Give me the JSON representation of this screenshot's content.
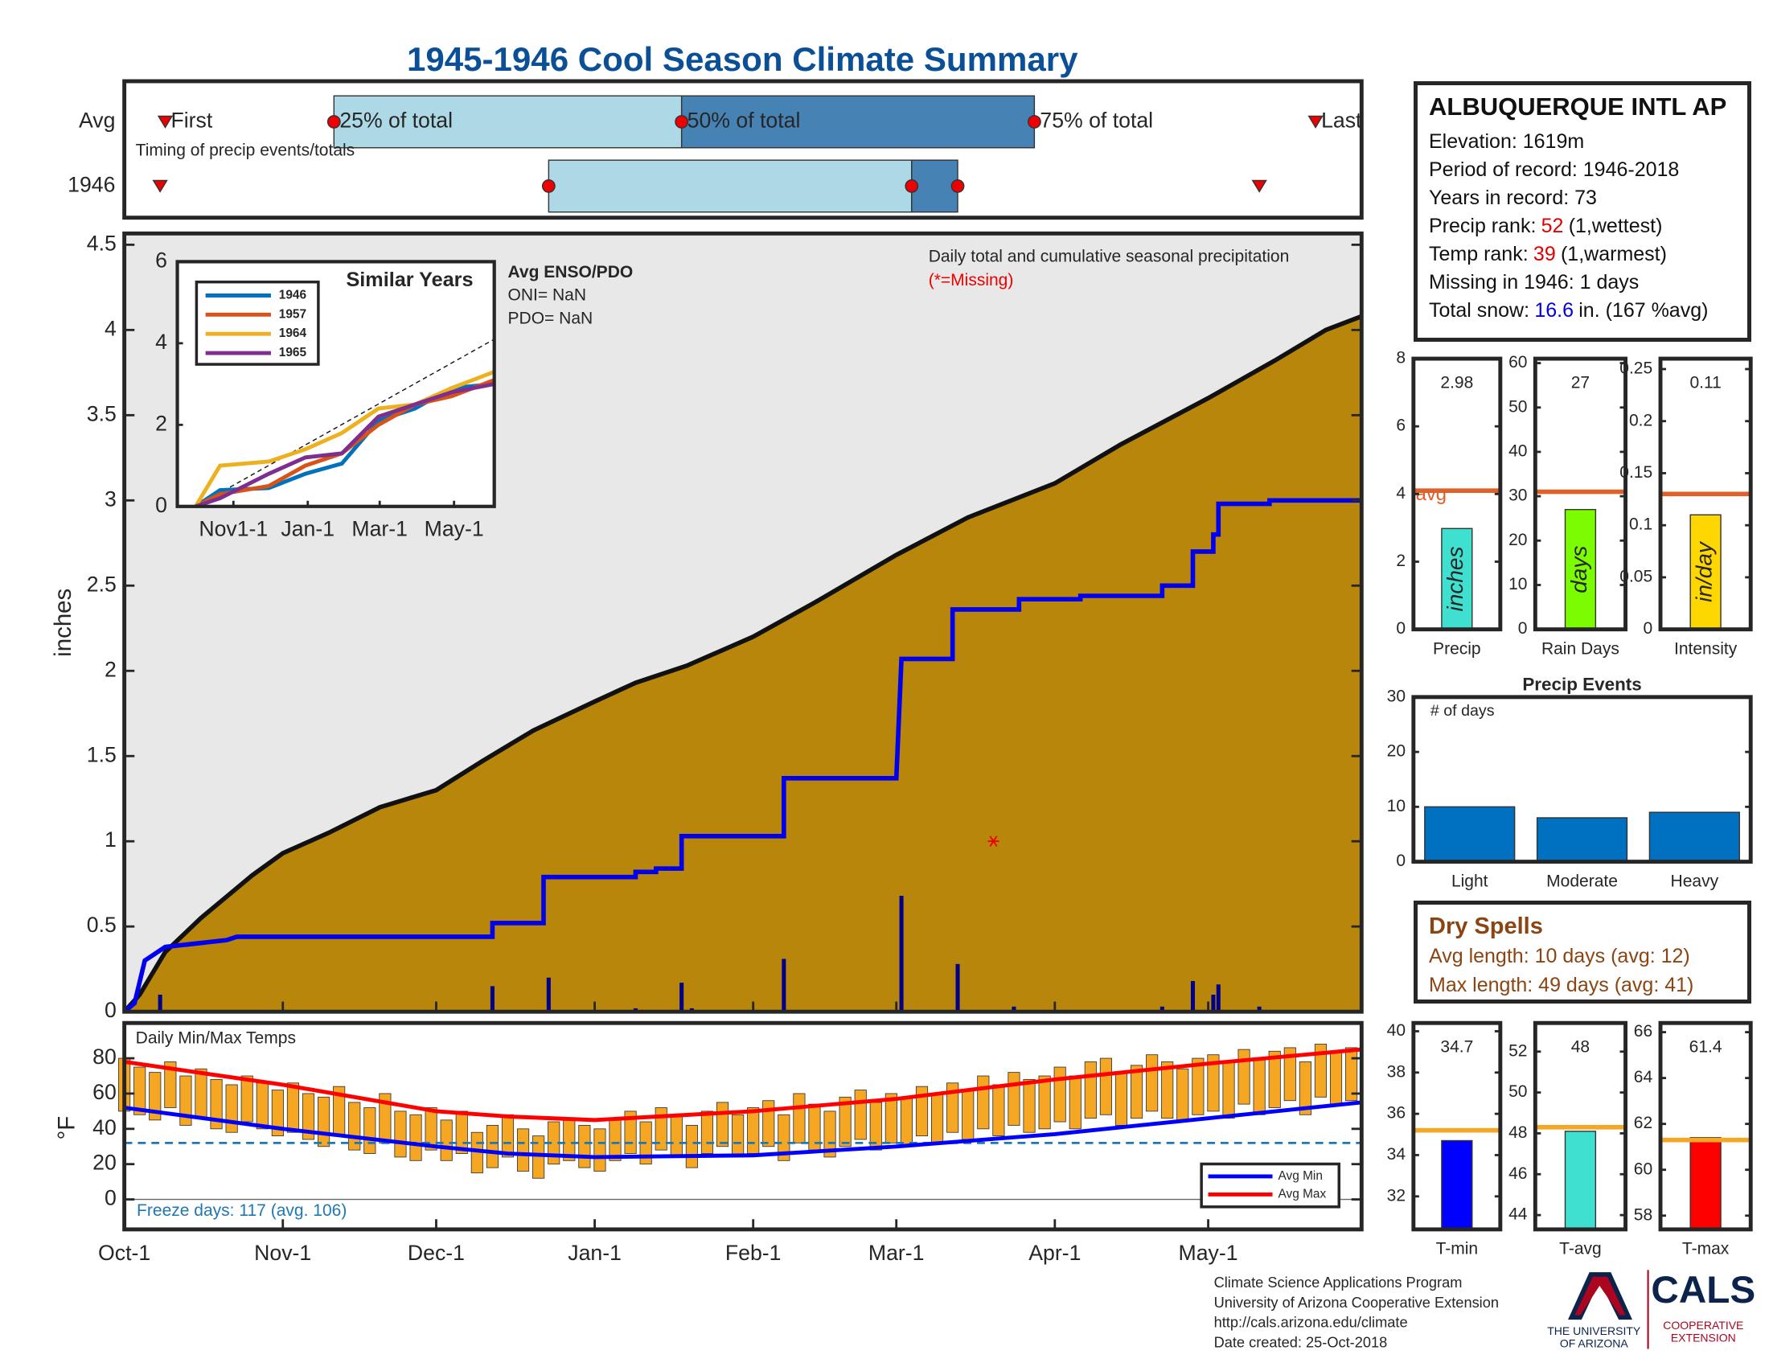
{
  "title": "1945-1946 Cool Season Climate Summary",
  "station": {
    "name": "ALBUQUERQUE INTL AP",
    "rows": [
      [
        "Elevation: 1619m"
      ],
      [
        "Period of record: 1946-2018"
      ],
      [
        "Years in record: 73"
      ],
      [
        "Precip rank:",
        "52",
        "(1,wettest)"
      ],
      [
        "Temp rank:",
        "39",
        "(1,warmest)"
      ],
      [
        "Missing in 1946: 1 days"
      ],
      [
        "Total snow:",
        "16.6",
        "in. (167 %avg)"
      ]
    ]
  },
  "dry_spells": {
    "title": "Dry Spells",
    "lines": [
      "Avg length: 10 days (avg: 12)",
      "Max length: 49 days (avg: 41)"
    ]
  },
  "footer": {
    "lines": [
      "Climate Science Applications Program",
      "University of Arizona Cooperative Extension",
      "http://cals.arizona.edu/climate",
      "Date created: 25-Oct-2018"
    ],
    "university": [
      "THE UNIVERSITY",
      "OF ARIZONA"
    ],
    "cals": "CALS",
    "extension": [
      "COOPERATIVE",
      "EXTENSION"
    ]
  },
  "chart_data": [
    {
      "type": "timeline",
      "note": "Timing of precip events/totals",
      "labels": [
        "First",
        "25% of total",
        "50% of total",
        "75% of total",
        "Last"
      ],
      "xlim": [
        0,
        242
      ],
      "colors": [
        "#add8e6",
        "#4682b4"
      ],
      "series": [
        {
          "name": "Avg",
          "values": [
            8,
            41,
            109,
            178,
            233
          ]
        },
        {
          "name": "1946",
          "values": [
            7,
            83,
            154,
            163,
            222
          ]
        }
      ]
    },
    {
      "type": "area",
      "ylabel": "inches",
      "annotation": "Daily total and cumulative seasonal precipitation",
      "missing_note": "(*=Missing)",
      "xlim": [
        0,
        242
      ],
      "ylim": [
        0,
        4.5
      ],
      "yticks": [
        0,
        0.5,
        1,
        1.5,
        2,
        2.5,
        3,
        3.5,
        4,
        4.5
      ],
      "background": "#e8e8e8",
      "average": {
        "color": "#b8860b",
        "x": [
          0,
          3,
          8,
          15,
          25,
          31,
          40,
          50,
          61,
          70,
          80,
          92,
          100,
          110,
          123,
          135,
          151,
          165,
          182,
          195,
          212,
          225,
          235,
          242
        ],
        "values": [
          0,
          0.1,
          0.35,
          0.55,
          0.8,
          0.93,
          1.05,
          1.2,
          1.3,
          1.47,
          1.65,
          1.82,
          1.93,
          2.03,
          2.2,
          2.4,
          2.68,
          2.9,
          3.1,
          3.33,
          3.6,
          3.82,
          4.0,
          4.08
        ]
      },
      "cumulative": {
        "color": "#0000ee",
        "x": [
          0,
          2,
          4,
          8,
          20,
          22,
          72,
          72,
          82,
          82,
          100,
          100,
          104,
          104,
          109,
          109,
          129,
          129,
          151,
          152,
          162,
          162,
          175,
          175,
          187,
          187,
          203,
          203,
          209,
          209,
          213,
          213,
          214,
          214,
          224,
          224,
          242
        ],
        "values": [
          0,
          0.05,
          0.3,
          0.38,
          0.42,
          0.44,
          0.44,
          0.52,
          0.52,
          0.79,
          0.79,
          0.82,
          0.82,
          0.84,
          0.84,
          1.03,
          1.03,
          1.37,
          1.37,
          2.07,
          2.07,
          2.36,
          2.36,
          2.42,
          2.42,
          2.44,
          2.44,
          2.5,
          2.5,
          2.7,
          2.7,
          2.8,
          2.8,
          2.98,
          2.98,
          3.0,
          3.0
        ]
      },
      "daily": {
        "color": "#00008b",
        "x": [
          7,
          72,
          83,
          100,
          109,
          111,
          129,
          152,
          163,
          174,
          203,
          209,
          213,
          214,
          222
        ],
        "values": [
          0.1,
          0.15,
          0.2,
          0.02,
          0.17,
          0.02,
          0.31,
          0.68,
          0.28,
          0.03,
          0.03,
          0.18,
          0.1,
          0.16,
          0.03
        ]
      },
      "missing": {
        "x": [
          170
        ],
        "values": [
          1
        ]
      }
    },
    {
      "type": "line",
      "title": "Similar Years",
      "notes": [
        "Avg ENSO/PDO",
        "ONI= NaN",
        "PDO= NaN"
      ],
      "xlim": [
        -15,
        245
      ],
      "ylim": [
        0,
        6
      ],
      "yticks": [
        0,
        2,
        4,
        6
      ],
      "xticks": [
        {
          "value": 31,
          "label": "Nov1-1"
        },
        {
          "value": 92,
          "label": "Jan-1"
        },
        {
          "value": 151,
          "label": "Mar-1"
        },
        {
          "value": 212,
          "label": "May-1"
        }
      ],
      "x": [
        0,
        20,
        60,
        90,
        120,
        150,
        180,
        210,
        245
      ],
      "series": [
        {
          "name": "1946",
          "color": "#0072bd",
          "values": [
            0,
            0.4,
            0.45,
            0.8,
            1.05,
            2.1,
            2.4,
            2.9,
            3.0
          ]
        },
        {
          "name": "1957",
          "color": "#d95319",
          "values": [
            0,
            0.3,
            0.5,
            1.0,
            1.3,
            2.0,
            2.5,
            2.7,
            3.1
          ]
        },
        {
          "name": "1964",
          "color": "#edb120",
          "values": [
            0,
            1.0,
            1.1,
            1.4,
            1.8,
            2.4,
            2.5,
            2.9,
            3.3
          ]
        },
        {
          "name": "1965",
          "color": "#7e2f8e",
          "values": [
            0,
            0.2,
            0.8,
            1.2,
            1.3,
            2.2,
            2.5,
            2.8,
            3.0
          ]
        }
      ],
      "reference": {
        "x": [
          0,
          245
        ],
        "values": [
          0,
          4.1
        ]
      }
    },
    {
      "type": "meter",
      "category": "Precip",
      "value": 2.98,
      "unit": "inches",
      "avg": 4.1,
      "avg_label": "avg",
      "avg_color": "#e0602a",
      "ylim": [
        0,
        8
      ],
      "yticks": [
        0,
        2,
        4,
        6,
        8
      ],
      "color": "#40e0d0"
    },
    {
      "type": "meter",
      "category": "Rain Days",
      "value": 27,
      "unit": "days",
      "avg": 31,
      "avg_color": "#e0602a",
      "ylim": [
        0,
        61
      ],
      "yticks": [
        0,
        10,
        20,
        30,
        40,
        50,
        60
      ],
      "color": "#7cfc00"
    },
    {
      "type": "meter",
      "category": "Intensity",
      "value": 0.11,
      "unit": "in/day",
      "avg": 0.13,
      "avg_color": "#e0602a",
      "ylim": [
        0,
        0.26
      ],
      "yticks": [
        0,
        0.05,
        0.1,
        0.15,
        0.2,
        0.25
      ],
      "color": "#ffd700"
    },
    {
      "type": "bar",
      "title": "Precip Events",
      "annotation": "# of days",
      "categories": [
        "Light",
        "Moderate",
        "Heavy"
      ],
      "values": [
        10,
        8,
        9
      ],
      "ylim": [
        0,
        30
      ],
      "yticks": [
        0,
        10,
        20,
        30
      ],
      "color": "#0070c0"
    },
    {
      "type": "range-bar",
      "title": "Daily Min/Max Temps",
      "ylabel": "°F",
      "note": "Freeze days: 117 (avg. 106)",
      "freeze": 32,
      "color": "#f5a623",
      "xlim": [
        0,
        242
      ],
      "ylim": [
        -17,
        100
      ],
      "yticks": [
        0,
        20,
        40,
        60,
        80
      ],
      "xticks": [
        {
          "value": 0,
          "label": "Oct-1"
        },
        {
          "value": 31,
          "label": "Nov-1"
        },
        {
          "value": 61,
          "label": "Dec-1"
        },
        {
          "value": 92,
          "label": "Jan-1"
        },
        {
          "value": 123,
          "label": "Feb-1"
        },
        {
          "value": 151,
          "label": "Mar-1"
        },
        {
          "value": 182,
          "label": "Apr-1"
        },
        {
          "value": 212,
          "label": "May-1"
        }
      ],
      "x": [
        0,
        3,
        6,
        9,
        12,
        15,
        18,
        21,
        24,
        27,
        30,
        33,
        36,
        39,
        42,
        45,
        48,
        51,
        54,
        57,
        60,
        63,
        66,
        69,
        72,
        75,
        78,
        81,
        84,
        87,
        90,
        93,
        96,
        99,
        102,
        105,
        108,
        111,
        114,
        117,
        120,
        123,
        126,
        129,
        132,
        135,
        138,
        141,
        144,
        147,
        150,
        153,
        156,
        159,
        162,
        165,
        168,
        171,
        174,
        177,
        180,
        183,
        186,
        189,
        192,
        195,
        198,
        201,
        204,
        207,
        210,
        213,
        216,
        219,
        222,
        225,
        228,
        231,
        234,
        237,
        240
      ],
      "max": [
        80,
        75,
        72,
        78,
        70,
        74,
        68,
        65,
        70,
        66,
        62,
        66,
        60,
        58,
        64,
        55,
        52,
        60,
        50,
        48,
        52,
        45,
        50,
        38,
        42,
        48,
        40,
        36,
        44,
        46,
        42,
        40,
        46,
        50,
        44,
        52,
        48,
        42,
        50,
        55,
        48,
        52,
        56,
        48,
        60,
        54,
        50,
        58,
        62,
        55,
        60,
        58,
        64,
        60,
        66,
        62,
        70,
        65,
        72,
        68,
        70,
        75,
        70,
        78,
        80,
        72,
        76,
        82,
        78,
        74,
        80,
        82,
        78,
        85,
        80,
        84,
        86,
        78,
        88,
        84,
        86
      ],
      "min": [
        50,
        48,
        45,
        52,
        42,
        46,
        40,
        38,
        44,
        40,
        36,
        38,
        34,
        30,
        36,
        28,
        26,
        32,
        24,
        22,
        28,
        22,
        26,
        15,
        18,
        24,
        16,
        12,
        20,
        22,
        18,
        16,
        22,
        26,
        20,
        28,
        24,
        18,
        26,
        30,
        24,
        26,
        30,
        22,
        32,
        28,
        24,
        30,
        34,
        28,
        32,
        30,
        36,
        32,
        38,
        34,
        40,
        36,
        42,
        38,
        40,
        44,
        40,
        46,
        48,
        42,
        46,
        50,
        46,
        44,
        48,
        50,
        46,
        54,
        48,
        52,
        56,
        48,
        58,
        54,
        56
      ],
      "series": [
        {
          "name": "Avg Min",
          "color": "#0000ff",
          "x": [
            0,
            31,
            61,
            75,
            92,
            123,
            151,
            182,
            212,
            242
          ],
          "values": [
            52,
            40,
            30,
            26,
            24,
            25,
            30,
            37,
            46,
            55
          ]
        },
        {
          "name": "Avg Max",
          "color": "#ff0000",
          "x": [
            0,
            31,
            61,
            75,
            92,
            123,
            151,
            182,
            212,
            242
          ],
          "values": [
            78,
            65,
            50,
            47,
            45,
            50,
            57,
            68,
            77,
            85
          ]
        }
      ]
    },
    {
      "type": "meter",
      "category": "T-min",
      "value": 34.7,
      "avg": 35.2,
      "avg_color": "#f5a623",
      "ylim": [
        30.4,
        40.4
      ],
      "yticks": [
        32,
        34,
        36,
        38,
        40
      ],
      "color": "#0000ff"
    },
    {
      "type": "meter",
      "category": "T-avg",
      "value": 48.1,
      "value_label": "48",
      "avg": 48.3,
      "avg_color": "#f5a623",
      "ylim": [
        43.3,
        53.4
      ],
      "yticks": [
        44,
        46,
        48,
        50,
        52
      ],
      "color": "#40e0d0"
    },
    {
      "type": "meter",
      "category": "T-max",
      "value": 61.4,
      "avg": 61.3,
      "avg_color": "#f5a623",
      "ylim": [
        57.4,
        66.4
      ],
      "yticks": [
        58,
        60,
        62,
        64,
        66
      ],
      "color": "#ff0000"
    }
  ]
}
